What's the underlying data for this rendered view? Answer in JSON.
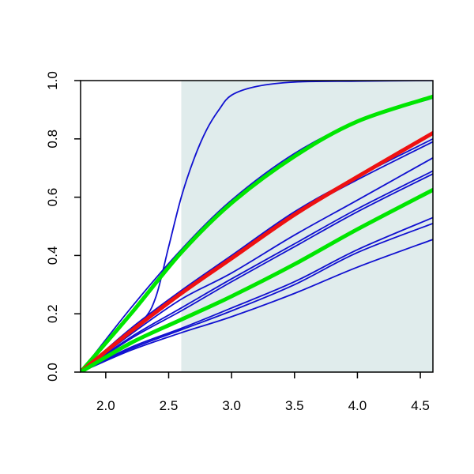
{
  "chart_data": {
    "type": "line",
    "title": "",
    "xlabel": "",
    "ylabel": "",
    "xlim": [
      1.8,
      4.6
    ],
    "ylim": [
      0.0,
      1.0
    ],
    "x_ticks": [
      2.0,
      2.5,
      3.0,
      3.5,
      4.0,
      4.5
    ],
    "x_tick_labels": [
      "2.0",
      "2.5",
      "3.0",
      "3.5",
      "4.0",
      "4.5"
    ],
    "y_ticks": [
      0.0,
      0.2,
      0.4,
      0.6,
      0.8,
      1.0
    ],
    "y_tick_labels": [
      "0.0",
      "0.2",
      "0.4",
      "0.6",
      "0.8",
      "1.0"
    ],
    "grid": false,
    "legend": "none",
    "shaded_region": {
      "x_start": 2.6,
      "x_end": 4.6,
      "color": "#e0ecec"
    },
    "colors": {
      "thin": "#1010d0",
      "highlight_a": "#00e600",
      "highlight_b": "#ee1111"
    },
    "series": [
      {
        "color": "#1010d0",
        "width": "thin",
        "x": [
          1.8,
          2.1,
          2.3,
          2.4,
          2.5,
          2.6,
          2.7,
          2.8,
          2.9,
          3.0,
          3.2,
          3.5,
          4.0,
          4.6
        ],
        "y": [
          0.0,
          0.11,
          0.18,
          0.26,
          0.43,
          0.6,
          0.73,
          0.83,
          0.9,
          0.95,
          0.98,
          0.995,
          0.998,
          1.0
        ]
      },
      {
        "color": "#1010d0",
        "width": "thin",
        "x": [
          1.8,
          2.2,
          2.6,
          3.0,
          3.5,
          4.0,
          4.6
        ],
        "y": [
          0.0,
          0.22,
          0.42,
          0.59,
          0.75,
          0.86,
          0.94
        ]
      },
      {
        "color": "#00e600",
        "width": "thick",
        "x": [
          1.8,
          2.2,
          2.6,
          3.0,
          3.5,
          4.0,
          4.6
        ],
        "y": [
          0.0,
          0.2,
          0.41,
          0.58,
          0.74,
          0.86,
          0.945
        ]
      },
      {
        "color": "#1010d0",
        "width": "thin",
        "x": [
          1.8,
          2.2,
          2.6,
          3.0,
          3.5,
          4.0,
          4.6
        ],
        "y": [
          0.0,
          0.15,
          0.28,
          0.4,
          0.55,
          0.67,
          0.8
        ]
      },
      {
        "color": "#1010d0",
        "width": "thin",
        "x": [
          1.8,
          2.2,
          2.6,
          3.0,
          3.5,
          4.0,
          4.6
        ],
        "y": [
          0.0,
          0.145,
          0.275,
          0.39,
          0.54,
          0.66,
          0.79
        ]
      },
      {
        "color": "#ee1111",
        "width": "thick",
        "x": [
          1.8,
          2.2,
          2.6,
          3.0,
          3.5,
          4.0,
          4.6
        ],
        "y": [
          0.0,
          0.14,
          0.27,
          0.39,
          0.54,
          0.67,
          0.82
        ]
      },
      {
        "color": "#1010d0",
        "width": "thin",
        "x": [
          1.8,
          2.2,
          2.6,
          3.0,
          3.5,
          4.0,
          4.6
        ],
        "y": [
          0.0,
          0.13,
          0.25,
          0.34,
          0.47,
          0.59,
          0.735
        ]
      },
      {
        "color": "#1010d0",
        "width": "thin",
        "x": [
          1.8,
          2.2,
          2.6,
          3.0,
          3.5,
          4.0,
          4.6
        ],
        "y": [
          0.0,
          0.12,
          0.22,
          0.32,
          0.44,
          0.56,
          0.69
        ]
      },
      {
        "color": "#1010d0",
        "width": "thin",
        "x": [
          1.8,
          2.2,
          2.6,
          3.0,
          3.5,
          4.0,
          4.6
        ],
        "y": [
          0.0,
          0.115,
          0.21,
          0.31,
          0.43,
          0.55,
          0.68
        ]
      },
      {
        "color": "#00e600",
        "width": "thick",
        "x": [
          1.8,
          2.2,
          2.6,
          3.0,
          3.5,
          4.0,
          4.6
        ],
        "y": [
          0.0,
          0.1,
          0.18,
          0.26,
          0.37,
          0.49,
          0.625
        ]
      },
      {
        "color": "#1010d0",
        "width": "thin",
        "x": [
          1.8,
          2.2,
          2.6,
          3.0,
          3.5,
          4.0,
          4.6
        ],
        "y": [
          0.0,
          0.085,
          0.15,
          0.22,
          0.31,
          0.42,
          0.53
        ]
      },
      {
        "color": "#1010d0",
        "width": "thin",
        "x": [
          1.8,
          2.2,
          2.6,
          3.0,
          3.5,
          4.0,
          4.6
        ],
        "y": [
          0.0,
          0.08,
          0.145,
          0.21,
          0.3,
          0.41,
          0.51
        ]
      },
      {
        "color": "#1010d0",
        "width": "thin",
        "x": [
          1.8,
          2.2,
          2.6,
          3.0,
          3.5,
          4.0,
          4.6
        ],
        "y": [
          0.0,
          0.075,
          0.135,
          0.19,
          0.27,
          0.36,
          0.455
        ]
      }
    ]
  }
}
